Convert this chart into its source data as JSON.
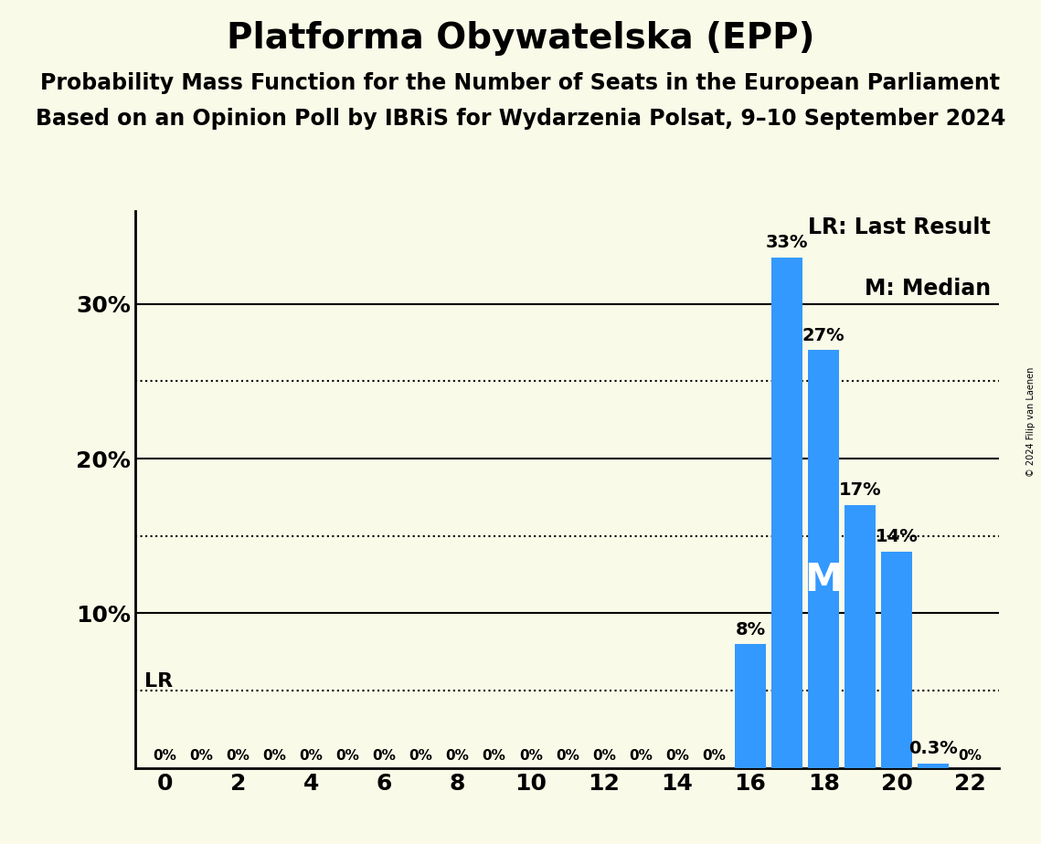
{
  "title": "Platforma Obywatelska (EPP)",
  "subtitle1": "Probability Mass Function for the Number of Seats in the European Parliament",
  "subtitle2": "Based on an Opinion Poll by IBRiS for Wydarzenia Polsat, 9–10 September 2024",
  "copyright": "© 2024 Filip van Laenen",
  "seats": [
    0,
    1,
    2,
    3,
    4,
    5,
    6,
    7,
    8,
    9,
    10,
    11,
    12,
    13,
    14,
    15,
    16,
    17,
    18,
    19,
    20,
    21,
    22
  ],
  "probabilities": [
    0,
    0,
    0,
    0,
    0,
    0,
    0,
    0,
    0,
    0,
    0,
    0,
    0,
    0,
    0,
    0,
    8,
    33,
    27,
    17,
    14,
    0.3,
    0
  ],
  "bar_color": "#3399ff",
  "background_color": "#fafae8",
  "lr_seat": 15,
  "lr_value": 5.0,
  "median_seat": 18,
  "xlabel_seats": [
    0,
    2,
    4,
    6,
    8,
    10,
    12,
    14,
    16,
    18,
    20,
    22
  ],
  "yticks_solid": [
    10,
    20,
    30
  ],
  "yticks_dotted": [
    5,
    15,
    25
  ],
  "ylim": [
    0,
    36
  ],
  "title_fontsize": 28,
  "subtitle_fontsize": 17,
  "tick_fontsize": 18,
  "label_fontsize": 14,
  "legend_fontsize": 17
}
